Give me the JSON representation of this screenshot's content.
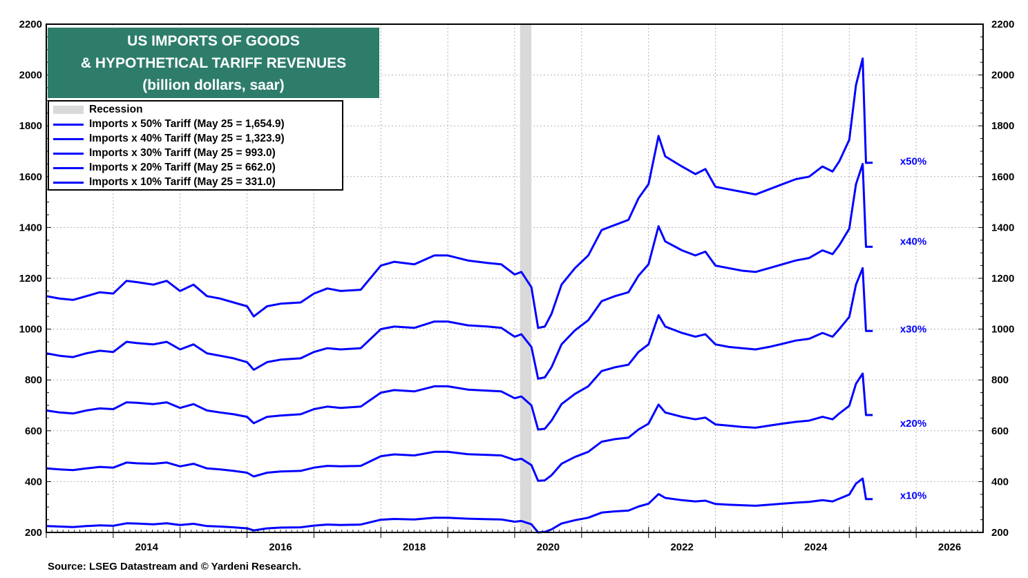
{
  "title_lines": [
    "US IMPORTS OF GOODS",
    "& HYPOTHETICAL TARIFF REVENUES",
    "(billion dollars, saar)"
  ],
  "source": "Source: LSEG Datastream and © Yardeni Research.",
  "legend": [
    {
      "label": "Recession",
      "kind": "band",
      "color": "#d9d9d9"
    },
    {
      "label": "Imports x 50% Tariff (May 25 = 1,654.9)",
      "kind": "line",
      "color": "#0000ff"
    },
    {
      "label": "Imports x 40% Tariff (May 25 = 1,323.9)",
      "kind": "line",
      "color": "#0000ff"
    },
    {
      "label": "Imports x 30% Tariff (May 25 = 993.0)",
      "kind": "line",
      "color": "#0000ff"
    },
    {
      "label": "Imports x 20% Tariff (May 25 = 662.0)",
      "kind": "line",
      "color": "#0000ff"
    },
    {
      "label": "Imports x 10% Tariff (May 25 = 331.0)",
      "kind": "line",
      "color": "#0000ff"
    }
  ],
  "colors": {
    "title_bg": "#2e7d6b",
    "series": "#0000ff",
    "recession": "#d9d9d9",
    "grid": "#b0b0b0"
  },
  "chart_data": {
    "type": "line",
    "xlim": [
      2013.0,
      2027.0
    ],
    "ylim": [
      200,
      2200
    ],
    "x_ticks": [
      2014,
      2016,
      2018,
      2020,
      2022,
      2024,
      2026
    ],
    "y_ticks": [
      200,
      400,
      600,
      800,
      1000,
      1200,
      1400,
      1600,
      1800,
      2000,
      2200
    ],
    "grid": true,
    "legend_position": "top-left",
    "recession": [
      2020.08,
      2020.25
    ],
    "series": [
      {
        "name": "Imports x 50% Tariff (May 25 = 1,654.9)",
        "end_label": "x50%",
        "label_y": 1660,
        "x": [
          2013.0,
          2013.2,
          2013.4,
          2013.6,
          2013.8,
          2014.0,
          2014.2,
          2014.35,
          2014.6,
          2014.8,
          2015.0,
          2015.2,
          2015.4,
          2015.6,
          2015.8,
          2016.0,
          2016.1,
          2016.3,
          2016.5,
          2016.8,
          2017.0,
          2017.2,
          2017.4,
          2017.7,
          2018.0,
          2018.2,
          2018.5,
          2018.8,
          2019.0,
          2019.3,
          2019.6,
          2019.8,
          2020.0,
          2020.1,
          2020.25,
          2020.35,
          2020.45,
          2020.55,
          2020.7,
          2020.9,
          2021.1,
          2021.3,
          2021.5,
          2021.7,
          2021.85,
          2022.0,
          2022.15,
          2022.25,
          2022.5,
          2022.7,
          2022.85,
          2023.0,
          2023.2,
          2023.4,
          2023.6,
          2023.8,
          2024.0,
          2024.2,
          2024.4,
          2024.6,
          2024.75,
          2024.85,
          2025.0,
          2025.1,
          2025.2,
          2025.25,
          2025.35
        ],
        "values": [
          1130,
          1120,
          1115,
          1130,
          1145,
          1140,
          1190,
          1185,
          1175,
          1190,
          1150,
          1175,
          1130,
          1120,
          1105,
          1090,
          1050,
          1090,
          1100,
          1105,
          1140,
          1160,
          1150,
          1155,
          1250,
          1265,
          1255,
          1290,
          1290,
          1270,
          1260,
          1255,
          1215,
          1225,
          1165,
          1005,
          1010,
          1060,
          1175,
          1240,
          1290,
          1390,
          1410,
          1430,
          1515,
          1570,
          1760,
          1680,
          1640,
          1610,
          1630,
          1560,
          1550,
          1540,
          1530,
          1550,
          1570,
          1590,
          1600,
          1640,
          1620,
          1660,
          1745,
          1960,
          2065,
          1654,
          1655
        ]
      },
      {
        "name": "Imports x 40% Tariff (May 25 = 1,323.9)",
        "end_label": "x40%",
        "label_y": 1345,
        "x": [
          2013.0,
          2013.2,
          2013.4,
          2013.6,
          2013.8,
          2014.0,
          2014.2,
          2014.35,
          2014.6,
          2014.8,
          2015.0,
          2015.2,
          2015.4,
          2015.6,
          2015.8,
          2016.0,
          2016.1,
          2016.3,
          2016.5,
          2016.8,
          2017.0,
          2017.2,
          2017.4,
          2017.7,
          2018.0,
          2018.2,
          2018.5,
          2018.8,
          2019.0,
          2019.3,
          2019.6,
          2019.8,
          2020.0,
          2020.1,
          2020.25,
          2020.35,
          2020.45,
          2020.55,
          2020.7,
          2020.9,
          2021.1,
          2021.3,
          2021.5,
          2021.7,
          2021.85,
          2022.0,
          2022.15,
          2022.25,
          2022.5,
          2022.7,
          2022.85,
          2023.0,
          2023.2,
          2023.4,
          2023.6,
          2023.8,
          2024.0,
          2024.2,
          2024.4,
          2024.6,
          2024.75,
          2024.85,
          2025.0,
          2025.1,
          2025.2,
          2025.25,
          2025.35
        ],
        "values": [
          905,
          895,
          890,
          905,
          915,
          910,
          950,
          945,
          940,
          950,
          920,
          940,
          905,
          895,
          885,
          870,
          840,
          870,
          880,
          885,
          910,
          925,
          920,
          925,
          1000,
          1010,
          1005,
          1030,
          1030,
          1015,
          1010,
          1005,
          970,
          980,
          930,
          805,
          810,
          850,
          940,
          995,
          1035,
          1110,
          1130,
          1145,
          1210,
          1255,
          1405,
          1345,
          1310,
          1290,
          1305,
          1250,
          1240,
          1230,
          1225,
          1240,
          1255,
          1270,
          1280,
          1310,
          1295,
          1330,
          1395,
          1570,
          1650,
          1324,
          1324
        ]
      },
      {
        "name": "Imports x 30% Tariff (May 25 = 993.0)",
        "end_label": "x30%",
        "label_y": 1000,
        "x": [
          2013.0,
          2013.2,
          2013.4,
          2013.6,
          2013.8,
          2014.0,
          2014.2,
          2014.35,
          2014.6,
          2014.8,
          2015.0,
          2015.2,
          2015.4,
          2015.6,
          2015.8,
          2016.0,
          2016.1,
          2016.3,
          2016.5,
          2016.8,
          2017.0,
          2017.2,
          2017.4,
          2017.7,
          2018.0,
          2018.2,
          2018.5,
          2018.8,
          2019.0,
          2019.3,
          2019.6,
          2019.8,
          2020.0,
          2020.1,
          2020.25,
          2020.35,
          2020.45,
          2020.55,
          2020.7,
          2020.9,
          2021.1,
          2021.3,
          2021.5,
          2021.7,
          2021.85,
          2022.0,
          2022.15,
          2022.25,
          2022.5,
          2022.7,
          2022.85,
          2023.0,
          2023.2,
          2023.4,
          2023.6,
          2023.8,
          2024.0,
          2024.2,
          2024.4,
          2024.6,
          2024.75,
          2024.85,
          2025.0,
          2025.1,
          2025.2,
          2025.25,
          2025.35
        ],
        "values": [
          680,
          672,
          668,
          680,
          688,
          685,
          712,
          710,
          705,
          712,
          690,
          705,
          680,
          672,
          665,
          655,
          630,
          655,
          660,
          665,
          685,
          695,
          690,
          695,
          750,
          760,
          755,
          775,
          775,
          762,
          758,
          755,
          728,
          735,
          700,
          605,
          608,
          640,
          705,
          745,
          775,
          835,
          850,
          860,
          910,
          940,
          1055,
          1010,
          985,
          970,
          980,
          940,
          930,
          925,
          920,
          930,
          942,
          955,
          962,
          985,
          970,
          1000,
          1048,
          1175,
          1240,
          993,
          993
        ]
      },
      {
        "name": "Imports x 20% Tariff (May 25 = 662.0)",
        "end_label": "x20%",
        "label_y": 630,
        "x": [
          2013.0,
          2013.2,
          2013.4,
          2013.6,
          2013.8,
          2014.0,
          2014.2,
          2014.35,
          2014.6,
          2014.8,
          2015.0,
          2015.2,
          2015.4,
          2015.6,
          2015.8,
          2016.0,
          2016.1,
          2016.3,
          2016.5,
          2016.8,
          2017.0,
          2017.2,
          2017.4,
          2017.7,
          2018.0,
          2018.2,
          2018.5,
          2018.8,
          2019.0,
          2019.3,
          2019.6,
          2019.8,
          2020.0,
          2020.1,
          2020.25,
          2020.35,
          2020.45,
          2020.55,
          2020.7,
          2020.9,
          2021.1,
          2021.3,
          2021.5,
          2021.7,
          2021.85,
          2022.0,
          2022.15,
          2022.25,
          2022.5,
          2022.7,
          2022.85,
          2023.0,
          2023.2,
          2023.4,
          2023.6,
          2023.8,
          2024.0,
          2024.2,
          2024.4,
          2024.6,
          2024.75,
          2024.85,
          2025.0,
          2025.1,
          2025.2,
          2025.25,
          2025.35
        ],
        "values": [
          452,
          448,
          445,
          452,
          458,
          455,
          475,
          472,
          470,
          475,
          460,
          470,
          452,
          448,
          442,
          435,
          420,
          435,
          440,
          442,
          455,
          462,
          460,
          462,
          500,
          507,
          503,
          517,
          517,
          508,
          505,
          503,
          485,
          490,
          465,
          403,
          405,
          425,
          470,
          497,
          517,
          557,
          567,
          573,
          605,
          628,
          703,
          672,
          655,
          645,
          652,
          625,
          620,
          615,
          612,
          620,
          628,
          635,
          640,
          655,
          645,
          668,
          698,
          785,
          825,
          662,
          662
        ]
      },
      {
        "name": "Imports x 10% Tariff (May 25 = 331.0)",
        "end_label": "x10%",
        "label_y": 345,
        "x": [
          2013.0,
          2013.2,
          2013.4,
          2013.6,
          2013.8,
          2014.0,
          2014.2,
          2014.35,
          2014.6,
          2014.8,
          2015.0,
          2015.2,
          2015.4,
          2015.6,
          2015.8,
          2016.0,
          2016.1,
          2016.3,
          2016.5,
          2016.8,
          2017.0,
          2017.2,
          2017.4,
          2017.7,
          2018.0,
          2018.2,
          2018.5,
          2018.8,
          2019.0,
          2019.3,
          2019.6,
          2019.8,
          2020.0,
          2020.1,
          2020.25,
          2020.35,
          2020.45,
          2020.55,
          2020.7,
          2020.9,
          2021.1,
          2021.3,
          2021.5,
          2021.7,
          2021.85,
          2022.0,
          2022.15,
          2022.25,
          2022.5,
          2022.7,
          2022.85,
          2023.0,
          2023.2,
          2023.4,
          2023.6,
          2023.8,
          2024.0,
          2024.2,
          2024.4,
          2024.6,
          2024.75,
          2024.85,
          2025.0,
          2025.1,
          2025.2,
          2025.25,
          2025.35
        ],
        "values": [
          225,
          223,
          221,
          225,
          228,
          226,
          236,
          235,
          232,
          236,
          229,
          234,
          225,
          223,
          220,
          216,
          208,
          216,
          219,
          220,
          227,
          231,
          229,
          231,
          250,
          253,
          251,
          258,
          258,
          254,
          252,
          251,
          242,
          245,
          232,
          200,
          202,
          212,
          235,
          248,
          258,
          278,
          283,
          286,
          302,
          313,
          351,
          336,
          327,
          322,
          325,
          312,
          309,
          307,
          305,
          309,
          313,
          317,
          320,
          327,
          322,
          333,
          349,
          392,
          412,
          331,
          331
        ]
      }
    ]
  }
}
